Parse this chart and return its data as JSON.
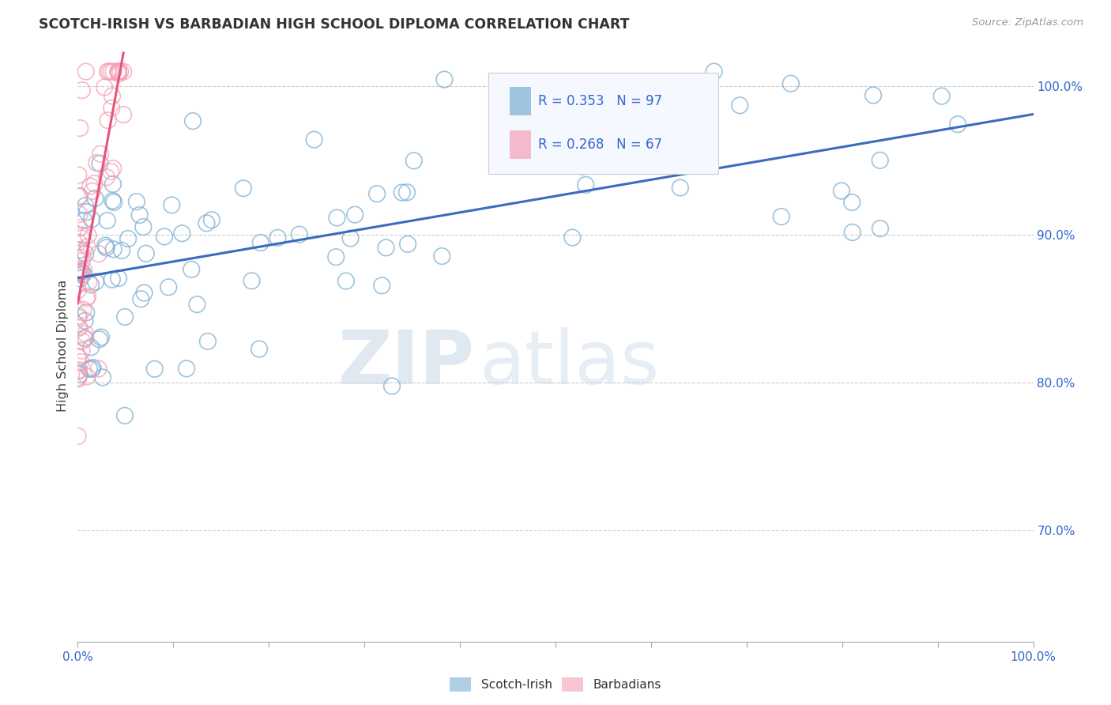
{
  "title": "SCOTCH-IRISH VS BARBADIAN HIGH SCHOOL DIPLOMA CORRELATION CHART",
  "source_text": "Source: ZipAtlas.com",
  "ylabel": "High School Diploma",
  "background_color": "#ffffff",
  "blue_color": "#7bafd4",
  "pink_color": "#f4a0b5",
  "trendline_blue": "#3a6bbf",
  "trendline_pink": "#e8547a",
  "legend_r1": "R = 0.353",
  "legend_n1": "N = 97",
  "legend_r2": "R = 0.268",
  "legend_n2": "N = 67",
  "watermark_zip": "ZIP",
  "watermark_atlas": "atlas",
  "x_lim": [
    0.0,
    1.0
  ],
  "y_lim": [
    0.625,
    1.025
  ],
  "y_ticks": [
    0.7,
    0.8,
    0.9,
    1.0
  ],
  "y_tick_labels": [
    "70.0%",
    "80.0%",
    "90.0%",
    "100.0%"
  ],
  "grid_color": "#cccccc",
  "tick_color": "#aaaaaa"
}
